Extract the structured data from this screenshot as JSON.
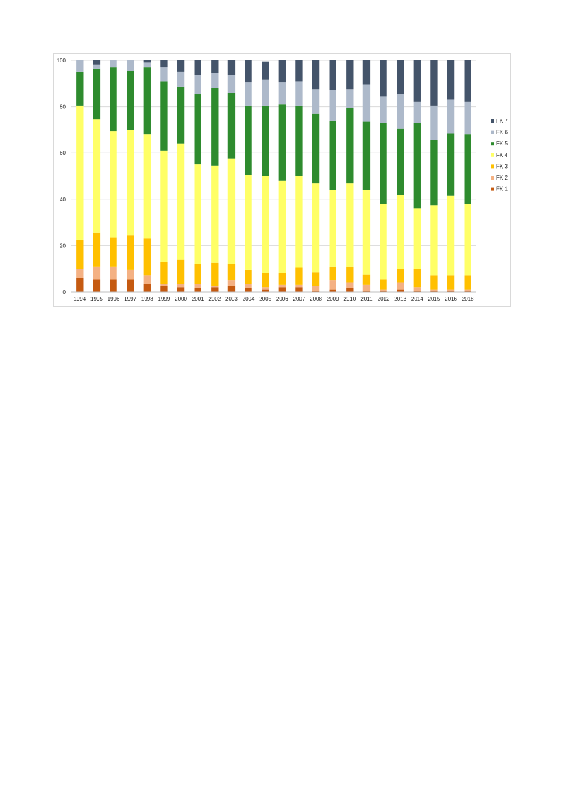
{
  "chart_data": {
    "type": "bar",
    "stacked": true,
    "categories": [
      "1994",
      "1995",
      "1996",
      "1997",
      "1998",
      "1999",
      "2000",
      "2001",
      "2002",
      "2003",
      "2004",
      "2005",
      "2006",
      "2007",
      "2008",
      "2009",
      "2010",
      "2011",
      "2012",
      "2013",
      "2014",
      "2015",
      "2016",
      "2018"
    ],
    "ylim": [
      0,
      100
    ],
    "yticks": [
      "0",
      "20",
      "40",
      "60",
      "80",
      "100"
    ],
    "grid": true,
    "legend_position": "right",
    "series": [
      {
        "name": "FK 1",
        "color": "#c55a11",
        "values": [
          6,
          5.5,
          5.5,
          5.5,
          3.5,
          2.5,
          2,
          1.5,
          2,
          2.5,
          1.5,
          1,
          2,
          2,
          0.5,
          1,
          1.5,
          0.5,
          0.5,
          1,
          0.5,
          0.5,
          0.5,
          0.5
        ]
      },
      {
        "name": "FK 2",
        "color": "#f4b183",
        "values": [
          4,
          5.5,
          5.5,
          4,
          3.5,
          1,
          1.5,
          2,
          0.5,
          2.5,
          2,
          1,
          1,
          1,
          2,
          4,
          2.5,
          2.5,
          0.5,
          3,
          1.5,
          0.5,
          0.5,
          0.5
        ]
      },
      {
        "name": "FK 3",
        "color": "#ffc000",
        "values": [
          12.5,
          14.5,
          12.5,
          15,
          16,
          9.5,
          10.5,
          8.5,
          10,
          7,
          6,
          6,
          5,
          7.5,
          6,
          6,
          7,
          4.5,
          4.5,
          6,
          8,
          6,
          6,
          6
        ]
      },
      {
        "name": "FK 4",
        "color": "#ffff66",
        "values": [
          58,
          49,
          46,
          45.5,
          45,
          48,
          50,
          43,
          42,
          45.5,
          41,
          42,
          40,
          39.5,
          38.5,
          33,
          36,
          36.5,
          32.5,
          32,
          26,
          30.5,
          34.5,
          31
        ]
      },
      {
        "name": "FK 5",
        "color": "#2e8b2e",
        "values": [
          14.5,
          22,
          27.5,
          25.5,
          29,
          30,
          24.5,
          30.5,
          33.5,
          28.5,
          30,
          30.5,
          33,
          30.5,
          30,
          30,
          32.5,
          29.5,
          35,
          28.5,
          37,
          28,
          27,
          30
        ]
      },
      {
        "name": "FK 6",
        "color": "#adb9ca",
        "values": [
          5,
          1.5,
          3,
          4.5,
          2,
          6,
          6.5,
          8,
          6.5,
          7.5,
          10,
          11,
          9.5,
          10.5,
          10.5,
          13,
          8,
          16,
          11.5,
          15,
          9,
          15,
          14.5,
          14
        ]
      },
      {
        "name": "FK 7",
        "color": "#44546a",
        "values": [
          0,
          2,
          0,
          0,
          1,
          3,
          5,
          6.5,
          5.5,
          6.5,
          9.5,
          8,
          9.5,
          9,
          12.5,
          13,
          12.5,
          10.5,
          15.5,
          14.5,
          18,
          19.5,
          17,
          18
        ]
      }
    ]
  }
}
